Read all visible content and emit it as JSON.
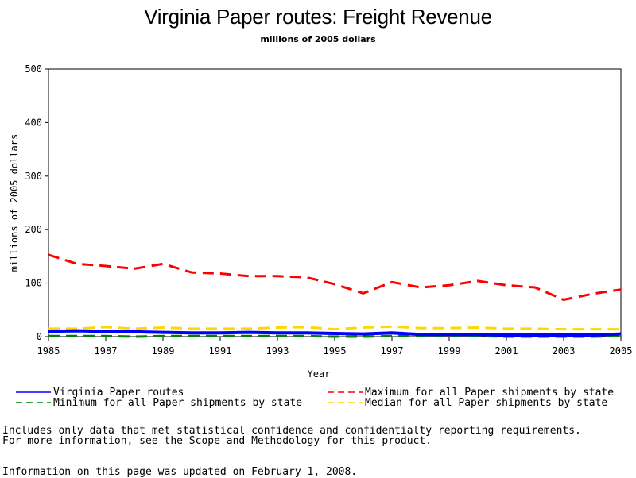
{
  "chart_data": {
    "type": "line",
    "title": "Virginia Paper routes: Freight Revenue",
    "subtitle": "millions of 2005 dollars",
    "xlabel": "Year",
    "ylabel": "millions of 2005 dollars",
    "xlim": [
      1985,
      2005
    ],
    "ylim": [
      0,
      500
    ],
    "xticks": [
      1985,
      1987,
      1989,
      1991,
      1993,
      1995,
      1997,
      1999,
      2001,
      2003,
      2005
    ],
    "yticks": [
      0,
      100,
      200,
      300,
      400,
      500
    ],
    "grid": false,
    "legend_position": "bottom",
    "x": [
      1985,
      1986,
      1987,
      1988,
      1989,
      1990,
      1991,
      1992,
      1993,
      1994,
      1995,
      1996,
      1997,
      1998,
      1999,
      2000,
      2001,
      2002,
      2003,
      2004,
      2005
    ],
    "series": [
      {
        "name": "Virginia Paper routes",
        "color": "#0000ff",
        "style": "solid",
        "values": [
          10,
          11,
          10,
          9,
          8,
          7,
          7,
          8,
          7,
          7,
          6,
          5,
          7,
          4,
          4,
          4,
          3,
          3,
          3,
          3,
          5
        ]
      },
      {
        "name": "Maximum for all Paper shipments by state",
        "color": "#ff0000",
        "style": "dashed",
        "values": [
          153,
          136,
          132,
          127,
          136,
          120,
          118,
          113,
          113,
          111,
          98,
          81,
          102,
          92,
          96,
          104,
          96,
          92,
          69,
          80,
          88
        ]
      },
      {
        "name": "Minimum for all Paper shipments by state",
        "color": "#008000",
        "style": "dashed",
        "values": [
          1,
          1,
          1,
          0,
          1,
          1,
          1,
          1,
          1,
          1,
          0,
          0,
          1,
          1,
          1,
          1,
          0,
          0,
          0,
          0,
          1
        ]
      },
      {
        "name": "Median for all Paper shipments by state",
        "color": "#ffd700",
        "style": "dashed",
        "values": [
          15,
          15,
          18,
          15,
          17,
          15,
          15,
          15,
          17,
          18,
          14,
          17,
          19,
          16,
          16,
          17,
          15,
          15,
          14,
          14,
          14
        ]
      }
    ]
  },
  "notes": {
    "line1": "Includes only data that met statistical confidence and confidentialty reporting requirements.",
    "line2": "For more information, see the Scope and Methodology for this product.",
    "updated": "Information on this page was updated on February 1, 2008."
  }
}
